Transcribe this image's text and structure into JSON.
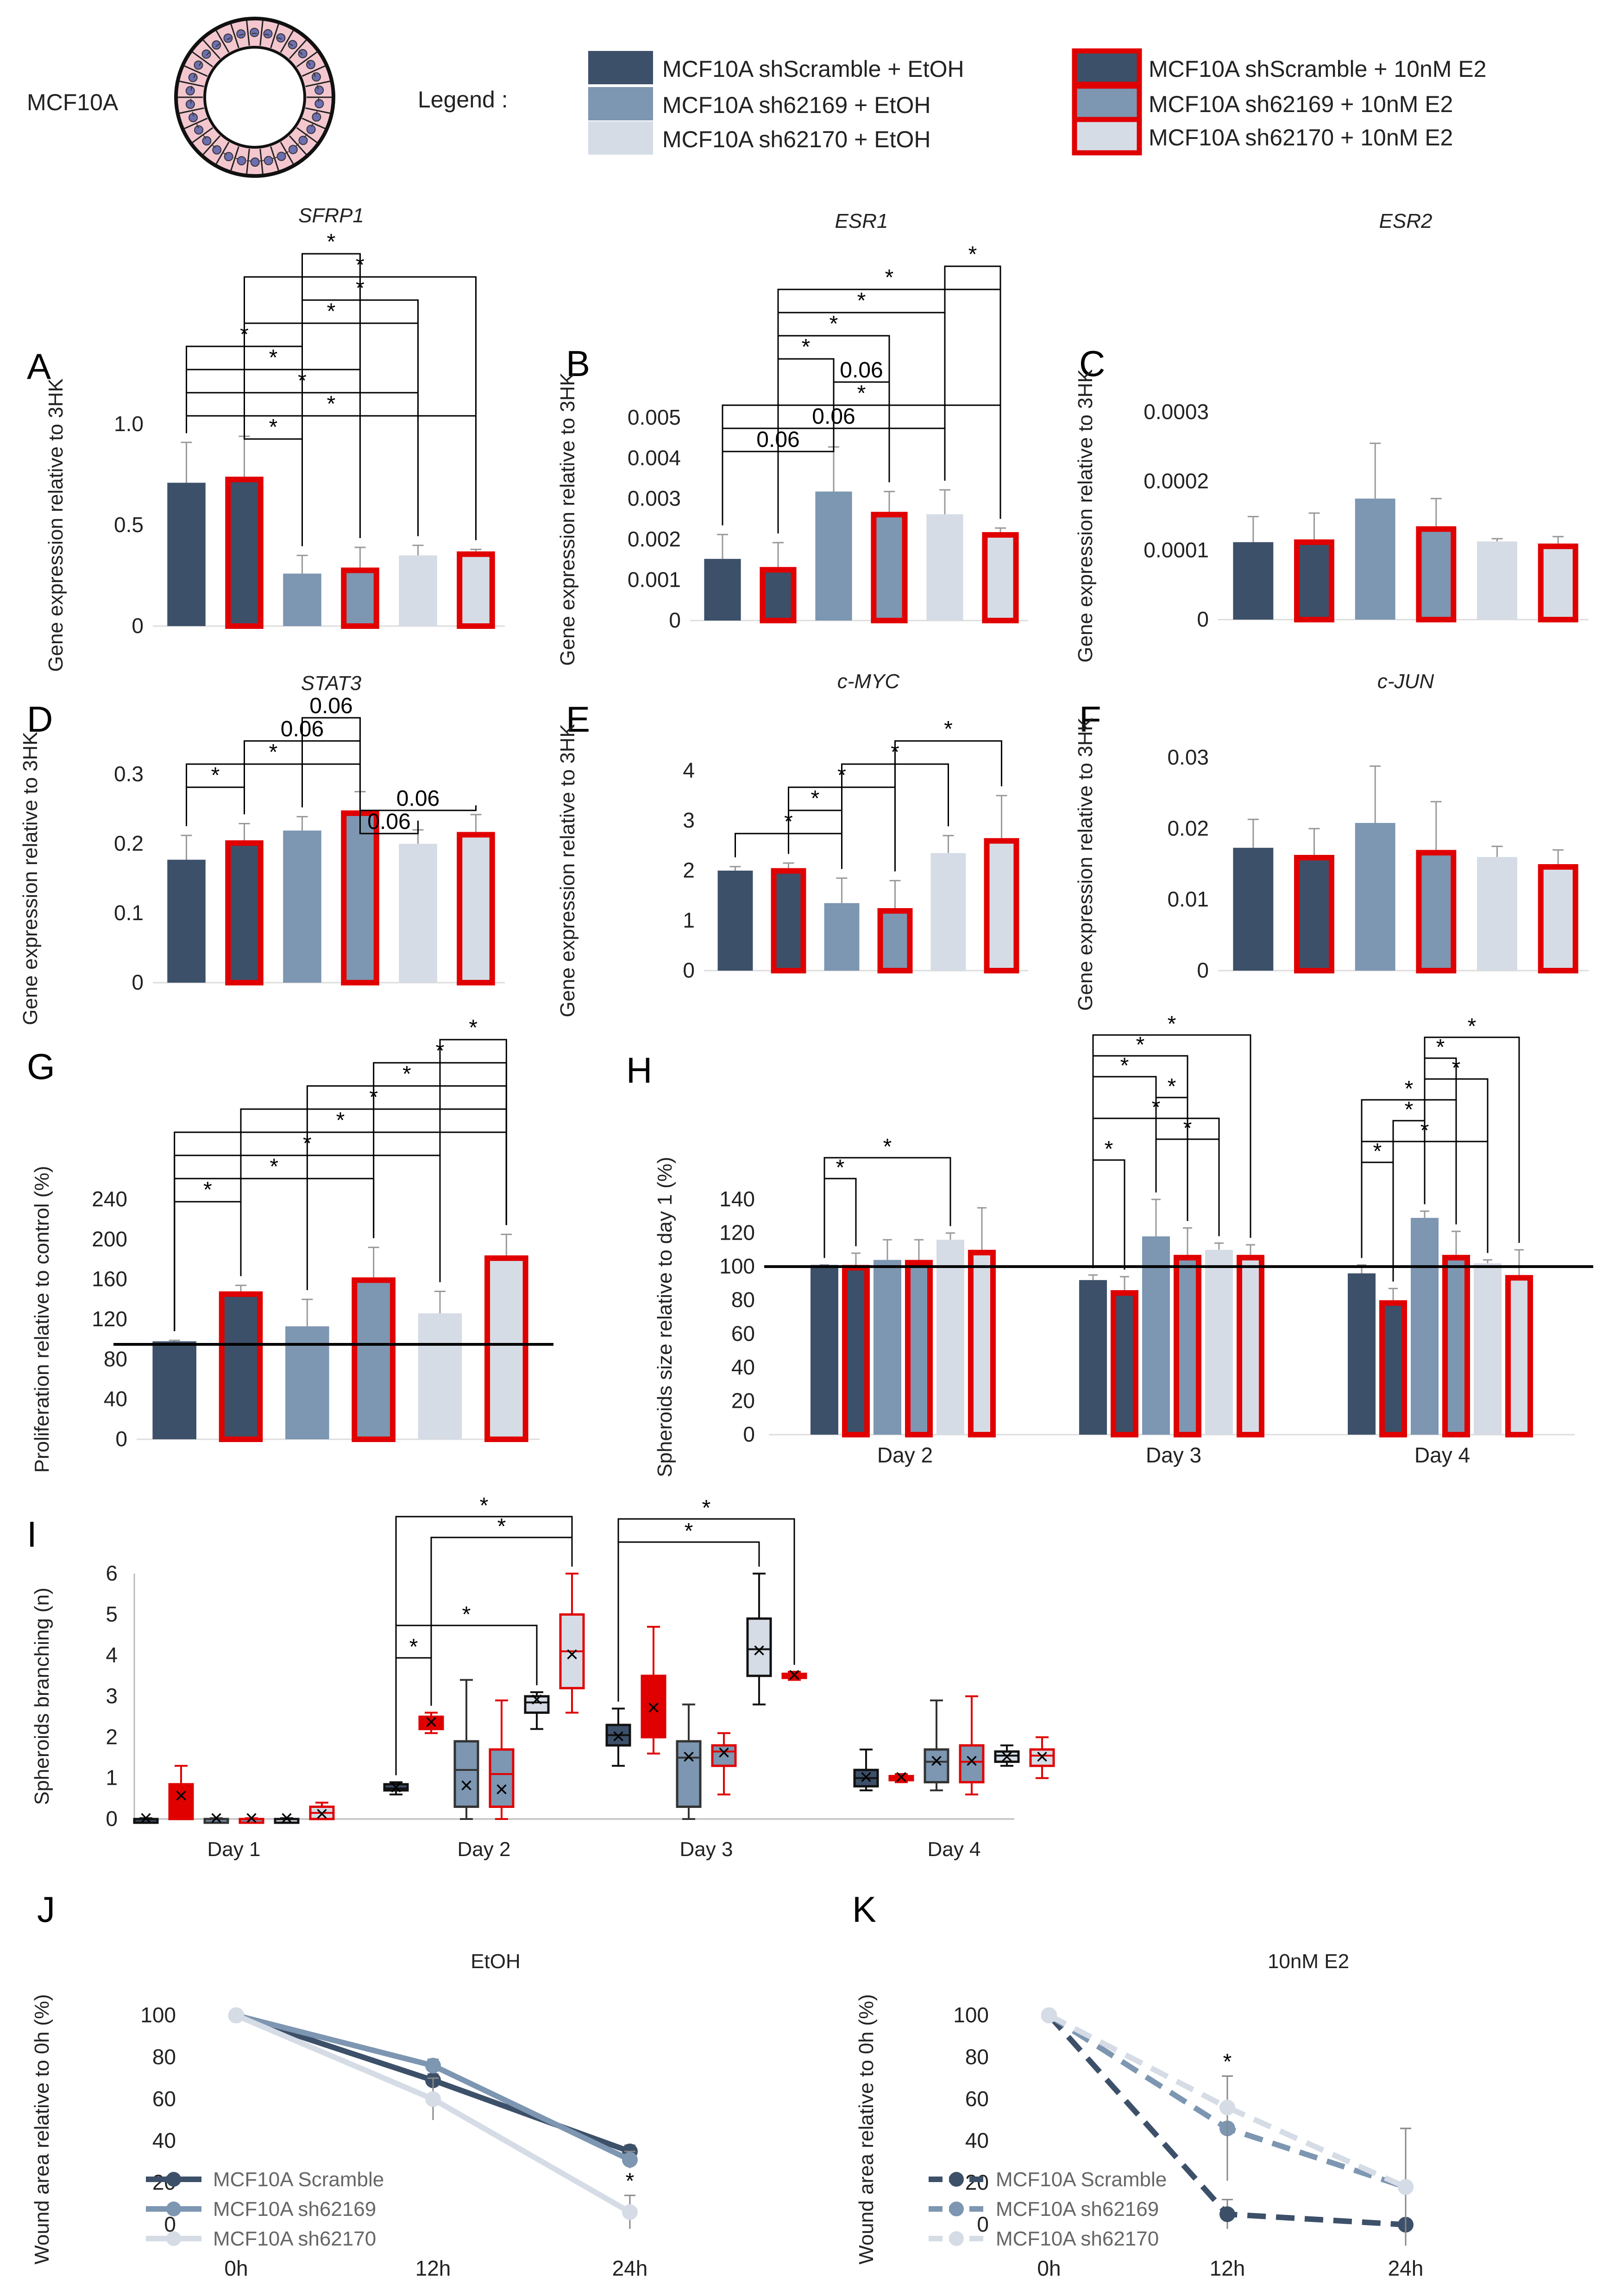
{
  "header": {
    "cell_line": "MCF10A",
    "legend_title": "Legend :"
  },
  "legend": [
    {
      "label": "MCF10A shScramble + EtOH",
      "fill": "#3d5069",
      "edge": "none"
    },
    {
      "label": "MCF10A sh62169 + EtOH",
      "fill": "#7d96b1",
      "edge": "none"
    },
    {
      "label": "MCF10A sh62170 + EtOH",
      "fill": "#d5dce6",
      "edge": "none"
    },
    {
      "label": "MCF10A shScramble + 10nM E2",
      "fill": "#3d5069",
      "edge": "#e00000"
    },
    {
      "label": "MCF10A sh62169 + 10nM E2",
      "fill": "#7d96b1",
      "edge": "#e00000"
    },
    {
      "label": "MCF10A sh62170 + 10nM E2",
      "fill": "#d5dce6",
      "edge": "#e00000"
    }
  ],
  "colors": {
    "dark": "#3d5069",
    "mid": "#7d96b1",
    "light": "#d5dce6",
    "red": "#e00000"
  },
  "chart_data": [
    {
      "panel": "A",
      "type": "bar",
      "title": "SFRP1",
      "ylabel": "Gene expression relative to 3HK",
      "ylim": [
        0,
        1.0
      ],
      "ticks": [
        "0",
        "0.5",
        "1.0"
      ],
      "tick_values": [
        0,
        0.5,
        1.0
      ],
      "values": [
        0.71,
        0.74,
        0.26,
        0.29,
        0.35,
        0.37
      ],
      "errors": [
        0.2,
        0.2,
        0.09,
        0.1,
        0.05,
        0.01
      ],
      "brackets": [
        [
          "2",
          "3",
          "*"
        ],
        [
          "1",
          "5",
          "*"
        ],
        [
          "2",
          "4",
          "*"
        ],
        [
          "1",
          "4",
          "*"
        ],
        [
          "0",
          "2",
          "*"
        ],
        [
          "0",
          "3",
          "*"
        ],
        [
          "0",
          "4",
          "*"
        ],
        [
          "0",
          "5",
          "*"
        ],
        [
          "1",
          "2",
          "*"
        ]
      ]
    },
    {
      "panel": "B",
      "type": "bar",
      "title": "ESR1",
      "ylabel": "Gene expression relative to 3HK",
      "ylim": [
        0,
        0.005
      ],
      "ticks": [
        "0",
        "0.001",
        "0.002",
        "0.003",
        "0.004",
        "0.005"
      ],
      "tick_values": [
        0,
        0.001,
        0.002,
        0.003,
        0.004,
        0.005
      ],
      "values": [
        0.00152,
        0.00132,
        0.00318,
        0.00268,
        0.00262,
        0.00218
      ],
      "errors": [
        0.0006,
        0.0006,
        0.0011,
        0.0005,
        0.0006,
        0.0001
      ],
      "brackets": [
        [
          "4",
          "5",
          "*"
        ],
        [
          "1",
          "5",
          "*"
        ],
        [
          "1",
          "4",
          "*"
        ],
        [
          "1",
          "3",
          "*"
        ],
        [
          "1",
          "2",
          "*"
        ],
        [
          "2",
          "3",
          "0.06"
        ],
        [
          "0",
          "5",
          "*"
        ],
        [
          "0",
          "4",
          "0.06"
        ],
        [
          "0",
          "2",
          "0.06"
        ]
      ]
    },
    {
      "panel": "C",
      "type": "bar",
      "title": "ESR2",
      "ylabel": "Gene expression relative to 3HK",
      "ylim": [
        0,
        0.0003
      ],
      "ticks": [
        "0",
        "0.0001",
        "0.0002",
        "0.0003"
      ],
      "tick_values": [
        0,
        0.0001,
        0.0002,
        0.0003
      ],
      "values": [
        0.000112,
        0.000116,
        0.000175,
        0.000135,
        0.000113,
        0.00011
      ],
      "errors": [
        3.7e-05,
        3.8e-05,
        8e-05,
        4e-05,
        4e-06,
        1e-05
      ],
      "brackets": []
    },
    {
      "panel": "D",
      "type": "bar",
      "title": "STAT3",
      "ylabel": "Gene expression relative to 3HK",
      "ylim": [
        0,
        0.3
      ],
      "ticks": [
        "0",
        "0.1",
        "0.2",
        "0.3"
      ],
      "tick_values": [
        0,
        0.1,
        0.2,
        0.3
      ],
      "values": [
        0.177,
        0.205,
        0.219,
        0.248,
        0.2,
        0.217
      ],
      "errors": [
        0.035,
        0.024,
        0.02,
        0.027,
        0.02,
        0.025
      ],
      "brackets": [
        [
          "2",
          "3",
          "0.06"
        ],
        [
          "1",
          "3",
          "0.06"
        ],
        [
          "0",
          "3",
          "*"
        ],
        [
          "0",
          "1",
          "*"
        ],
        [
          "3",
          "5",
          "0.06"
        ],
        [
          "3",
          "4",
          "0.06"
        ]
      ]
    },
    {
      "panel": "E",
      "type": "bar",
      "title": "c-MYC",
      "ylabel": "Gene expression relative to 3HK",
      "ylim": [
        0,
        4
      ],
      "ticks": [
        "0",
        "1",
        "2",
        "3",
        "4"
      ],
      "tick_values": [
        0,
        1,
        2,
        3,
        4
      ],
      "values": [
        2.0,
        2.05,
        1.35,
        1.25,
        2.35,
        2.65
      ],
      "errors": [
        0.08,
        0.1,
        0.5,
        0.55,
        0.35,
        0.85
      ],
      "brackets": [
        [
          "3",
          "5",
          "*"
        ],
        [
          "2",
          "4",
          "*"
        ],
        [
          "1",
          "3",
          "*"
        ],
        [
          "1",
          "2",
          "*"
        ],
        [
          "0",
          "2",
          "*"
        ]
      ]
    },
    {
      "panel": "F",
      "type": "bar",
      "title": "c-JUN",
      "ylabel": "Gene expression relative to 3HK",
      "ylim": [
        0,
        0.03
      ],
      "ticks": [
        "0",
        "0.01",
        "0.02",
        "0.03"
      ],
      "tick_values": [
        0,
        0.01,
        0.02,
        0.03
      ],
      "values": [
        0.0173,
        0.0163,
        0.0208,
        0.017,
        0.016,
        0.015
      ],
      "errors": [
        0.004,
        0.0037,
        0.008,
        0.0068,
        0.0015,
        0.002
      ],
      "brackets": []
    },
    {
      "panel": "G",
      "type": "bar",
      "ylabel": "Proliferation relative to  control (%)",
      "ylim": [
        0,
        240
      ],
      "ticks": [
        "0",
        "40",
        "80",
        "120",
        "160",
        "200",
        "240"
      ],
      "tick_values": [
        0,
        40,
        80,
        120,
        160,
        200,
        240
      ],
      "values": [
        98,
        148,
        113,
        162,
        126,
        184
      ],
      "errors": [
        1,
        6,
        27,
        30,
        22,
        21
      ],
      "reference_line": 95,
      "brackets": [
        [
          "4",
          "5",
          "*"
        ],
        [
          "3",
          "5",
          "*"
        ],
        [
          "2",
          "5",
          "*"
        ],
        [
          "1",
          "5",
          "*"
        ],
        [
          "0",
          "5",
          "*"
        ],
        [
          "0",
          "4",
          "*"
        ],
        [
          "0",
          "3",
          "*"
        ],
        [
          "0",
          "1",
          "*"
        ]
      ]
    },
    {
      "panel": "H",
      "type": "bar",
      "ylabel": "Spheroids size relative to day 1 (%)",
      "ylim": [
        0,
        140
      ],
      "ticks": [
        "0",
        "20",
        "40",
        "60",
        "80",
        "100",
        "120",
        "140"
      ],
      "tick_values": [
        0,
        20,
        40,
        60,
        80,
        100,
        120,
        140
      ],
      "categories": [
        "Day 2",
        "Day 3",
        "Day 4"
      ],
      "reference_line": 100,
      "series": [
        {
          "name": "MCF10A shScramble + EtOH",
          "values": [
            101,
            92,
            96
          ],
          "errors": [
            0,
            3,
            5
          ]
        },
        {
          "name": "MCF10A shScramble + 10nM E2",
          "values": [
            101,
            86,
            80
          ],
          "errors": [
            7,
            8,
            7
          ]
        },
        {
          "name": "MCF10A sh62169 + EtOH",
          "values": [
            104,
            118,
            129
          ],
          "errors": [
            12,
            22,
            4
          ]
        },
        {
          "name": "MCF10A sh62169 + 10nM E2",
          "values": [
            104,
            107,
            107
          ],
          "errors": [
            12,
            16,
            14
          ]
        },
        {
          "name": "MCF10A sh62170 + EtOH",
          "values": [
            116,
            110,
            102
          ],
          "errors": [
            4,
            4,
            2
          ]
        },
        {
          "name": "MCF10A sh62170 + 10nM E2",
          "values": [
            110,
            107,
            95
          ],
          "errors": [
            25,
            6,
            15
          ]
        }
      ],
      "brackets": [
        [
          "0",
          "0",
          "0",
          "4",
          "*"
        ],
        [
          "0",
          "0",
          "0",
          "1",
          "*"
        ],
        [
          "1",
          "0",
          "1",
          "5",
          "*"
        ],
        [
          "1",
          "0",
          "1",
          "3",
          "*"
        ],
        [
          "1",
          "0",
          "1",
          "2",
          "*"
        ],
        [
          "1",
          "2",
          "1",
          "3",
          "*"
        ],
        [
          "1",
          "0",
          "1",
          "4",
          "*"
        ],
        [
          "1",
          "2",
          "1",
          "4",
          "*"
        ],
        [
          "1",
          "0",
          "1",
          "1",
          "*"
        ],
        [
          "2",
          "2",
          "2",
          "5",
          "*"
        ],
        [
          "2",
          "2",
          "2",
          "3",
          "*"
        ],
        [
          "2",
          "2",
          "2",
          "4",
          "*"
        ],
        [
          "2",
          "0",
          "2",
          "3",
          "*"
        ],
        [
          "2",
          "1",
          "2",
          "2",
          "*"
        ],
        [
          "2",
          "0",
          "2",
          "4",
          "*"
        ],
        [
          "2",
          "0",
          "2",
          "1",
          "*"
        ]
      ]
    },
    {
      "panel": "I",
      "type": "box",
      "ylabel": "Spheroids branching (n)",
      "ylim": [
        0,
        6
      ],
      "ticks": [
        "0",
        "1",
        "2",
        "3",
        "4",
        "5",
        "6"
      ],
      "tick_values": [
        0,
        1,
        2,
        3,
        4,
        5,
        6
      ],
      "categories": [
        "Day 1",
        "Day 2",
        "Day 3",
        "Day 4"
      ],
      "boxes": [
        [
          [
            0,
            0,
            0,
            0,
            0,
            0.02
          ],
          [
            0,
            0,
            0.55,
            0.55,
            0.85,
            1.3
          ],
          [
            0,
            0,
            0,
            0,
            0,
            0.02
          ],
          [
            0,
            0,
            0,
            0,
            0,
            0.02
          ],
          [
            0,
            0,
            0,
            0,
            0,
            0.02
          ],
          [
            0,
            0,
            0.15,
            0.1,
            0.3,
            0.4
          ]
        ],
        [
          [
            0.6,
            0.7,
            0.75,
            0.75,
            0.85,
            0.9
          ],
          [
            2.1,
            2.2,
            2.35,
            2.35,
            2.5,
            2.6
          ],
          [
            0,
            0.3,
            1.2,
            0.8,
            1.9,
            3.4
          ],
          [
            0,
            0.3,
            1.1,
            0.7,
            1.7,
            2.9
          ],
          [
            2.2,
            2.6,
            2.85,
            2.9,
            3.0,
            3.1
          ],
          [
            2.6,
            3.2,
            4.1,
            4.0,
            5.0,
            6.0
          ]
        ],
        [
          [
            1.3,
            1.8,
            2.05,
            2.0,
            2.3,
            2.7
          ],
          [
            1.6,
            2.0,
            2.6,
            2.7,
            3.5,
            4.7
          ],
          [
            0,
            0.3,
            1.5,
            1.5,
            1.9,
            2.8
          ],
          [
            0.6,
            1.3,
            1.65,
            1.6,
            1.8,
            2.1
          ],
          [
            2.8,
            3.5,
            4.15,
            4.1,
            4.9,
            6.0
          ],
          [
            3.4,
            3.45,
            3.5,
            3.5,
            3.55,
            3.6
          ]
        ],
        [
          [
            0.7,
            0.8,
            1.0,
            1.0,
            1.2,
            1.7
          ],
          [
            0.9,
            0.95,
            1.0,
            1.0,
            1.05,
            1.1
          ],
          [
            0.7,
            0.9,
            1.4,
            1.4,
            1.7,
            2.9
          ],
          [
            0.6,
            0.9,
            1.4,
            1.4,
            1.8,
            3.0
          ],
          [
            1.3,
            1.4,
            1.55,
            1.5,
            1.65,
            1.8
          ],
          [
            1.0,
            1.3,
            1.55,
            1.5,
            1.7,
            2.0
          ]
        ]
      ],
      "brackets": [
        [
          "1",
          "0",
          "1",
          "5",
          "*"
        ],
        [
          "1",
          "1",
          "1",
          "5",
          "*"
        ],
        [
          "1",
          "0",
          "1",
          "1",
          "*"
        ],
        [
          "1",
          "0",
          "1",
          "4",
          "*"
        ],
        [
          "2",
          "0",
          "2",
          "5",
          "*"
        ],
        [
          "2",
          "0",
          "2",
          "4",
          "*"
        ]
      ]
    },
    {
      "panel": "J",
      "type": "line",
      "title": "EtOH",
      "ylabel": "Wound area relative to 0h   (%)",
      "ylim": [
        0,
        100
      ],
      "ticks": [
        "0",
        "20",
        "40",
        "60",
        "80",
        "100"
      ],
      "tick_values": [
        0,
        20,
        40,
        60,
        80,
        100
      ],
      "x": [
        "0h",
        "12h",
        "24h"
      ],
      "series": [
        {
          "name": "MCF10A Scramble",
          "values": [
            100,
            69,
            35
          ],
          "errors": [
            0,
            3,
            3
          ]
        },
        {
          "name": "MCF10A sh62169",
          "values": [
            100,
            76,
            31
          ],
          "errors": [
            0,
            3,
            4
          ]
        },
        {
          "name": "MCF10A sh62170",
          "values": [
            100,
            60,
            6
          ],
          "errors": [
            0,
            10,
            8
          ]
        }
      ],
      "annotation": {
        "x": "24h",
        "text": "*",
        "series": "MCF10A sh62170"
      }
    },
    {
      "panel": "K",
      "type": "line",
      "title": "10nM E2",
      "ylabel": "Wound area relative to 0h   (%)",
      "ylim": [
        0,
        100
      ],
      "ticks": [
        "0",
        "20",
        "40",
        "60",
        "80",
        "100"
      ],
      "tick_values": [
        0,
        20,
        40,
        60,
        80,
        100
      ],
      "x": [
        "0h",
        "12h",
        "24h"
      ],
      "series": [
        {
          "name": "MCF10A Scramble",
          "values": [
            100,
            5,
            0
          ],
          "errors": [
            0,
            7,
            0
          ]
        },
        {
          "name": "MCF10A sh62169",
          "values": [
            100,
            46,
            18
          ],
          "errors": [
            0,
            25,
            28
          ]
        },
        {
          "name": "MCF10A sh62170",
          "values": [
            100,
            56,
            18
          ],
          "errors": [
            0,
            15,
            28
          ]
        }
      ],
      "annotation": {
        "x": "12h",
        "text": "*",
        "series": "MCF10A sh62169"
      }
    }
  ]
}
